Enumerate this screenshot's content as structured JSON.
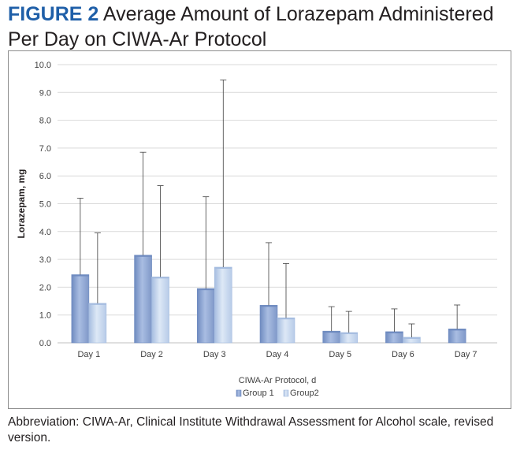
{
  "figure": {
    "label": "FIGURE 2",
    "title": "Average Amount of Lorazepam Administered Per Day on CIWA-Ar Protocol"
  },
  "caption": "Abbreviation: CIWA-Ar, Clinical Institute Withdrawal Assessment for Alcohol scale, revised version.",
  "colors": {
    "group1": "#8ea6d2",
    "group1_dark": "#6f8bc0",
    "group2": "#c3d4ec",
    "group2_dark": "#a6bde0",
    "grid": "#d9d9d9",
    "error_bar": "#404040"
  },
  "chart_data": {
    "type": "bar",
    "xlabel": "CIWA-Ar Protocol, d",
    "ylabel": "Lorazepam, mg",
    "ylim": [
      0,
      10
    ],
    "yticks": [
      "0.0",
      "1.0",
      "2.0",
      "3.0",
      "4.0",
      "5.0",
      "6.0",
      "7.0",
      "8.0",
      "9.0",
      "10.0"
    ],
    "grid": true,
    "legend_position": "bottom",
    "categories": [
      "Day 1",
      "Day 2",
      "Day 3",
      "Day 4",
      "Day 5",
      "Day 6",
      "Day 7"
    ],
    "series": [
      {
        "name": "Group 1",
        "values": [
          2.45,
          3.15,
          1.95,
          1.35,
          0.42,
          0.4,
          0.5
        ],
        "error_upper": [
          5.2,
          6.85,
          5.25,
          3.6,
          1.3,
          1.22,
          1.36
        ]
      },
      {
        "name": "Group2",
        "values": [
          1.42,
          2.37,
          2.72,
          0.9,
          0.37,
          0.2,
          0
        ],
        "error_upper": [
          3.95,
          5.65,
          9.45,
          2.85,
          1.13,
          0.68,
          null
        ]
      }
    ]
  }
}
